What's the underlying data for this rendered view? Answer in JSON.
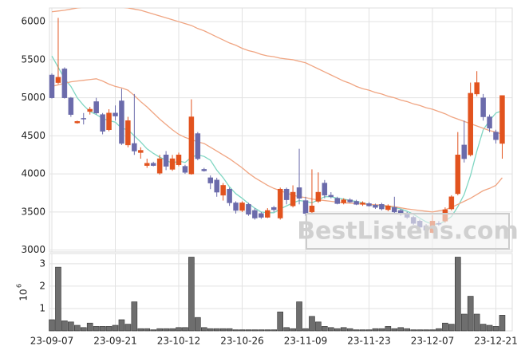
{
  "chart_data": {
    "type": "candlestick",
    "categories": [
      "23-09-07",
      null,
      null,
      null,
      null,
      null,
      null,
      null,
      null,
      null,
      "23-09-21",
      null,
      null,
      null,
      null,
      null,
      null,
      null,
      null,
      null,
      "23-10-12",
      null,
      null,
      null,
      null,
      null,
      null,
      null,
      null,
      null,
      "23-10-26",
      null,
      null,
      null,
      null,
      null,
      null,
      null,
      null,
      null,
      "23-11-09",
      null,
      null,
      null,
      null,
      null,
      null,
      null,
      null,
      null,
      "23-11-23",
      null,
      null,
      null,
      null,
      null,
      null,
      null,
      null,
      null,
      "23-12-07",
      null,
      null,
      null,
      null,
      null,
      null,
      null,
      null,
      null,
      "23-12-21",
      null
    ],
    "open": [
      5300,
      5200,
      5380,
      5000,
      4670,
      4730,
      4820,
      4950,
      4780,
      4580,
      4800,
      4960,
      4380,
      4400,
      4280,
      4110,
      4140,
      4010,
      4250,
      4060,
      4120,
      4100,
      4000,
      4530,
      4060,
      3950,
      3920,
      3720,
      3800,
      3620,
      3520,
      3600,
      3520,
      3480,
      3430,
      3560,
      3420,
      3800,
      3580,
      3820,
      3650,
      3500,
      3640,
      3880,
      3720,
      3680,
      3620,
      3660,
      3640,
      3600,
      3610,
      3590,
      3600,
      3530,
      3560,
      3520,
      3480,
      3430,
      3380,
      3320,
      3230,
      3350,
      3380,
      3540,
      3740,
      4380,
      4250,
      5050,
      5000,
      4750,
      4550,
      4400
    ],
    "high": [
      5320,
      6050,
      5400,
      5010,
      4700,
      4800,
      4880,
      5000,
      4800,
      4850,
      4900,
      5120,
      4750,
      5050,
      4350,
      4200,
      4160,
      4250,
      4300,
      4250,
      4280,
      4120,
      4980,
      4550,
      4080,
      3980,
      3950,
      3880,
      3820,
      3640,
      3640,
      3620,
      3550,
      3500,
      3550,
      3580,
      3820,
      3820,
      3850,
      4330,
      3700,
      4060,
      4020,
      3920,
      3760,
      3700,
      3680,
      3680,
      3660,
      3640,
      3630,
      3610,
      3620,
      3600,
      3700,
      3540,
      3500,
      3450,
      3400,
      3340,
      3460,
      3380,
      3560,
      3720,
      4550,
      4700,
      5200,
      5350,
      5050,
      4780,
      4580,
      5030
    ],
    "low": [
      4990,
      5180,
      4990,
      4750,
      4660,
      4650,
      4780,
      4780,
      4520,
      4560,
      4700,
      4380,
      4350,
      4250,
      4200,
      4080,
      4100,
      3990,
      4050,
      4040,
      4100,
      4000,
      3990,
      4180,
      4030,
      3800,
      3700,
      3650,
      3580,
      3480,
      3500,
      3450,
      3400,
      3410,
      3420,
      3500,
      3400,
      3600,
      3560,
      3600,
      3450,
      3480,
      3620,
      3680,
      3680,
      3600,
      3600,
      3620,
      3590,
      3580,
      3570,
      3540,
      3520,
      3510,
      3480,
      3450,
      3410,
      3330,
      3280,
      3230,
      3220,
      3320,
      3360,
      3520,
      3720,
      4150,
      4230,
      5020,
      4700,
      4550,
      4400,
      4200
    ],
    "close": [
      5000,
      5270,
      5000,
      4780,
      4690,
      4720,
      4850,
      4800,
      4560,
      4800,
      4760,
      4400,
      4700,
      4300,
      4310,
      4140,
      4110,
      4200,
      4100,
      4200,
      4250,
      4020,
      4750,
      4200,
      4040,
      3880,
      3760,
      3850,
      3620,
      3520,
      3620,
      3470,
      3420,
      3430,
      3520,
      3530,
      3800,
      3660,
      3760,
      3680,
      3480,
      3580,
      3760,
      3720,
      3700,
      3610,
      3660,
      3630,
      3600,
      3620,
      3580,
      3560,
      3540,
      3580,
      3500,
      3470,
      3430,
      3350,
      3300,
      3260,
      3380,
      3340,
      3530,
      3700,
      4250,
      4200,
      5060,
      5200,
      4750,
      4600,
      4450,
      5030
    ],
    "up_color": "#e2531e",
    "down_color": "#6b6bab",
    "series": [
      {
        "color": "#7fd6c2",
        "values": [
          5550,
          5400,
          5250,
          5150,
          5000,
          4900,
          4820,
          4780,
          4730,
          4700,
          4680,
          4600,
          4580,
          4500,
          4420,
          4330,
          4270,
          4220,
          4180,
          4140,
          4170,
          4150,
          4220,
          4250,
          4230,
          4180,
          4050,
          3950,
          3830,
          3740,
          3680,
          3610,
          3550,
          3500,
          3490,
          3490,
          3540,
          3580,
          3620,
          3650,
          3640,
          3620,
          3660,
          3700,
          3700,
          3680,
          3670,
          3650,
          3640,
          3620,
          3600,
          3590,
          3580,
          3570,
          3560,
          3540,
          3510,
          3470,
          3420,
          3370,
          3340,
          3340,
          3380,
          3440,
          3570,
          3730,
          3980,
          4300,
          4580,
          4700,
          4800,
          4830
        ]
      },
      {
        "color": "#f0a582",
        "values": [
          5150,
          5170,
          5190,
          5210,
          5220,
          5230,
          5240,
          5250,
          5220,
          5180,
          5150,
          5130,
          5100,
          5030,
          4950,
          4880,
          4800,
          4720,
          4650,
          4580,
          4520,
          4480,
          4450,
          4420,
          4400,
          4350,
          4300,
          4250,
          4200,
          4140,
          4080,
          4010,
          3950,
          3900,
          3850,
          3810,
          3780,
          3750,
          3720,
          3700,
          3690,
          3670,
          3660,
          3650,
          3640,
          3630,
          3620,
          3615,
          3610,
          3605,
          3600,
          3595,
          3590,
          3580,
          3570,
          3555,
          3540,
          3530,
          3520,
          3510,
          3500,
          3515,
          3530,
          3560,
          3600,
          3640,
          3680,
          3730,
          3780,
          3810,
          3850,
          3950
        ]
      },
      {
        "color": "#f0a582",
        "values": [
          6130,
          6140,
          6150,
          6165,
          6180,
          6190,
          6200,
          6200,
          6200,
          6200,
          6200,
          6190,
          6180,
          6165,
          6150,
          6125,
          6100,
          6075,
          6050,
          6025,
          6000,
          5975,
          5950,
          5910,
          5880,
          5840,
          5800,
          5760,
          5720,
          5690,
          5650,
          5620,
          5600,
          5570,
          5550,
          5540,
          5520,
          5510,
          5500,
          5480,
          5460,
          5420,
          5380,
          5340,
          5300,
          5260,
          5220,
          5190,
          5150,
          5120,
          5100,
          5070,
          5050,
          5020,
          5000,
          4970,
          4950,
          4920,
          4900,
          4870,
          4850,
          4820,
          4790,
          4750,
          4720,
          4690,
          4660,
          4630,
          4600,
          4570,
          4550,
          4520
        ]
      }
    ],
    "ylim": [
      2975,
      6180
    ],
    "yticks": [
      3000,
      3500,
      4000,
      4500,
      5000,
      5500,
      6000
    ],
    "grid": true,
    "volume": {
      "color": "#6e6e6e",
      "values": [
        0.5,
        2.85,
        0.45,
        0.4,
        0.25,
        0.15,
        0.35,
        0.2,
        0.2,
        0.2,
        0.25,
        0.5,
        0.3,
        1.3,
        0.1,
        0.1,
        0.05,
        0.1,
        0.1,
        0.1,
        0.15,
        0.15,
        3.3,
        0.6,
        0.15,
        0.1,
        0.1,
        0.1,
        0.1,
        0.05,
        0.05,
        0.05,
        0.05,
        0.05,
        0.05,
        0.05,
        0.85,
        0.15,
        0.1,
        1.3,
        0.1,
        0.65,
        0.4,
        0.2,
        0.15,
        0.1,
        0.15,
        0.1,
        0.05,
        0.05,
        0.05,
        0.1,
        0.1,
        0.2,
        0.1,
        0.15,
        0.1,
        0.05,
        0.05,
        0.05,
        0.05,
        0.1,
        0.35,
        0.3,
        3.3,
        0.75,
        1.55,
        0.75,
        0.3,
        0.25,
        0.2,
        0.7
      ],
      "ylim": [
        0,
        3.46
      ],
      "yticks": [
        1,
        2,
        3
      ],
      "scale_base": "10",
      "scale_exponent": "6"
    },
    "watermark": "BestListens.com"
  }
}
